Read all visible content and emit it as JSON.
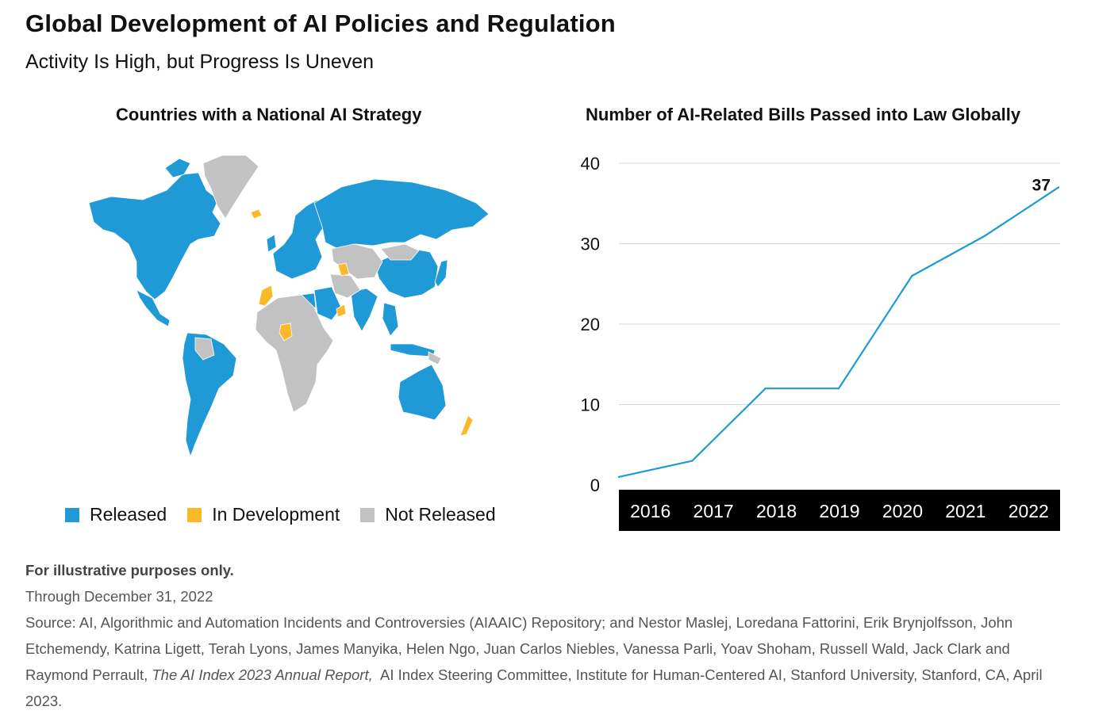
{
  "header": {
    "title": "Global Development of AI Policies and Regulation",
    "subtitle": "Activity Is High, but Progress Is Uneven"
  },
  "map_panel": {
    "title": "Countries with a National AI Strategy",
    "colors": {
      "released": "#1f9ad6",
      "in_development": "#fbb829",
      "not_released": "#c2c2c2"
    },
    "legend": [
      {
        "label": "Released",
        "color": "#1f9ad6"
      },
      {
        "label": "In Development",
        "color": "#fbb829"
      },
      {
        "label": "Not Released",
        "color": "#c2c2c2"
      }
    ]
  },
  "chart_panel": {
    "title": "Number of AI-Related Bills Passed into Law Globally"
  },
  "chart_data": {
    "type": "line",
    "title": "Number of AI-Related Bills Passed into Law Globally",
    "xlabel": "",
    "ylabel": "",
    "x": [
      "2016",
      "2017",
      "2018",
      "2019",
      "2020",
      "2021",
      "2022"
    ],
    "series": [
      {
        "values": [
          1,
          3,
          12,
          12,
          26,
          31,
          37
        ],
        "color": "#1f9ad6"
      }
    ],
    "ylim": [
      0,
      40
    ],
    "yticks": [
      0,
      10,
      20,
      30,
      40
    ],
    "annotations": [
      {
        "x": "2022",
        "label": "37"
      }
    ],
    "grid": true
  },
  "notes": {
    "illustrative": "For illustrative purposes only.",
    "through": "Through December 31, 2022",
    "source_prefix": "Source: AI, Algorithmic and Automation Incidents and Controversies (AIAAIC) Repository; and Nestor Maslej, Loredana Fattorini, Erik Brynjolfsson, John Etchemendy, Katrina Ligett, Terah Lyons, James Manyika, Helen Ngo, Juan Carlos Niebles, Vanessa Parli, Yoav Shoham, Russell Wald, Jack Clark and Raymond Perrault,",
    "source_italic": "The AI Index 2023 Annual Report,",
    "source_suffix": "AI Index Steering Committee, Institute for Human-Centered AI, Stanford University, Stanford, CA, April 2023."
  }
}
